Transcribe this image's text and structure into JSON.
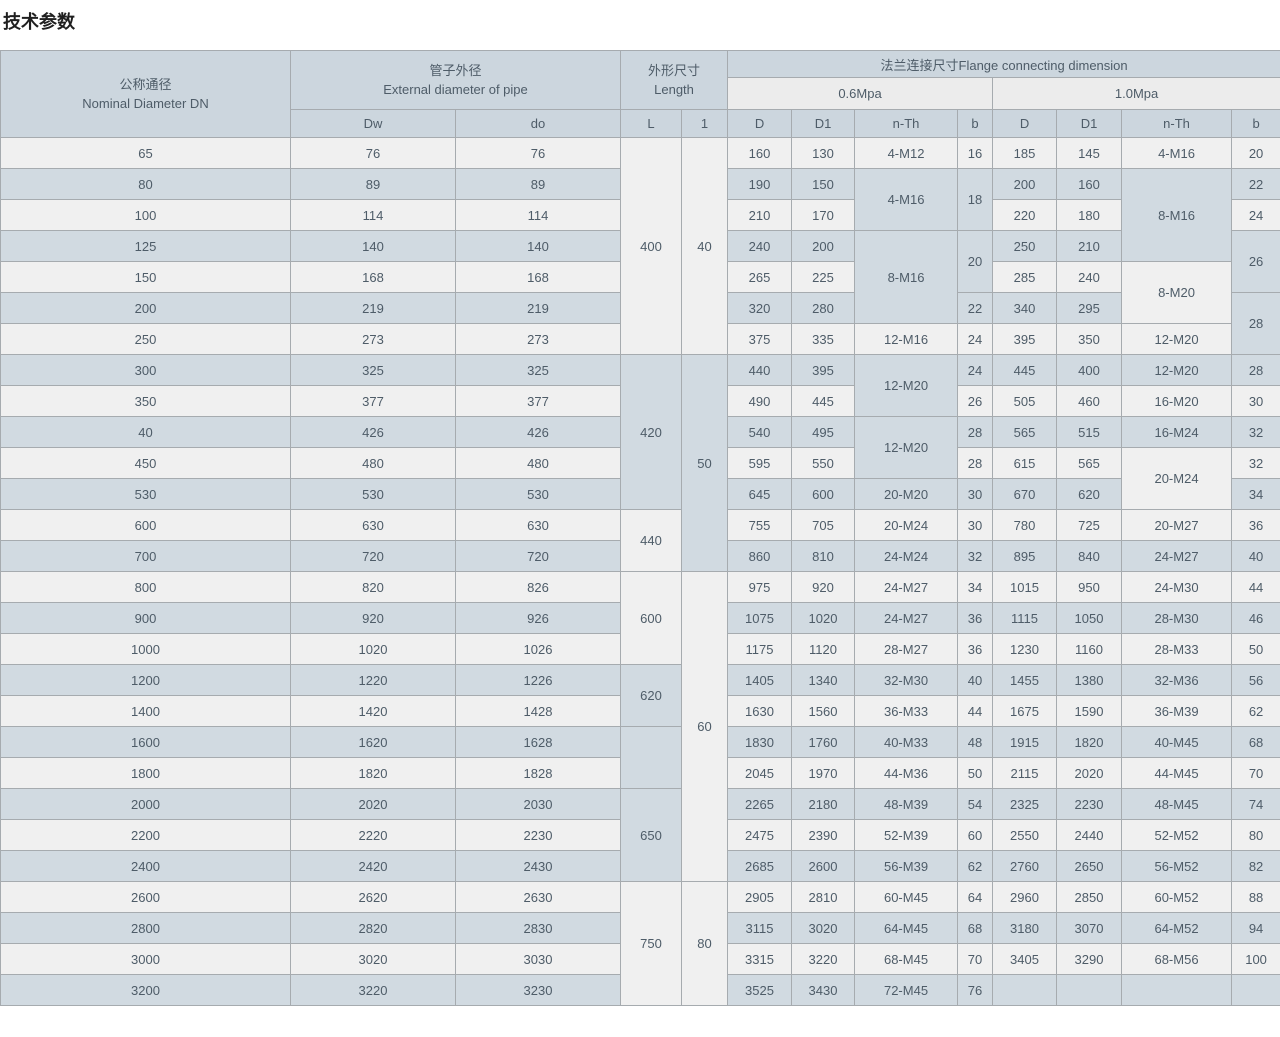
{
  "page": {
    "title": "技术参数"
  },
  "table": {
    "header": {
      "dn": {
        "cn": "公称通径",
        "en": "Nominal Diameter DN"
      },
      "pipe": {
        "cn": "管子外径",
        "en": "External diameter of pipe"
      },
      "length": {
        "cn": "外形尺寸",
        "en": "Length"
      },
      "flange": "法兰连接尺寸Flange connecting dimension",
      "pressure_groups": [
        "0.6Mpa",
        "1.0Mpa"
      ],
      "sub_columns": [
        "Dw",
        "do",
        "L",
        "1",
        "D",
        "D1",
        "n-Th",
        "b",
        "D",
        "D1",
        "n-Th",
        "b"
      ]
    },
    "colors": {
      "header_bg": "#ccd6de",
      "pressure_row_bg": "#ececec",
      "row_light": "#f0f0f0",
      "row_shaded": "#d1dae1",
      "border": "#a6abaf",
      "border_outer": "#8d979e",
      "cell_text": "#4e5c68",
      "title_text": "#1f1f1f"
    },
    "rows": [
      [
        "65",
        "76",
        "76",
        [
          "400",
          7
        ],
        [
          "40",
          7
        ],
        "160",
        "130",
        "4-M12",
        "16",
        "185",
        "145",
        "4-M16",
        "20"
      ],
      [
        "80",
        "89",
        "89",
        "190",
        "150",
        [
          "4-M16",
          2
        ],
        [
          "18",
          2
        ],
        "200",
        "160",
        [
          "8-M16",
          3
        ],
        "22"
      ],
      [
        "100",
        "114",
        "114",
        "210",
        "170",
        "220",
        "180",
        "24"
      ],
      [
        "125",
        "140",
        "140",
        "240",
        "200",
        [
          "8-M16",
          3
        ],
        [
          "20",
          2
        ],
        "250",
        "210",
        [
          "26",
          2
        ]
      ],
      [
        "150",
        "168",
        "168",
        "265",
        "225",
        "285",
        "240",
        [
          "8-M20",
          2
        ]
      ],
      [
        "200",
        "219",
        "219",
        "320",
        "280",
        "22",
        "340",
        "295",
        [
          "28",
          2
        ]
      ],
      [
        "250",
        "273",
        "273",
        "375",
        "335",
        "12-M16",
        "24",
        "395",
        "350",
        "12-M20"
      ],
      [
        "300",
        "325",
        "325",
        [
          "420",
          5
        ],
        [
          "50",
          7
        ],
        "440",
        "395",
        [
          "12-M20",
          2
        ],
        "24",
        "445",
        "400",
        "12-M20",
        "28"
      ],
      [
        "350",
        "377",
        "377",
        "490",
        "445",
        "26",
        "505",
        "460",
        "16-M20",
        "30"
      ],
      [
        "40",
        "426",
        "426",
        "540",
        "495",
        [
          "12-M20",
          2
        ],
        "28",
        "565",
        "515",
        "16-M24",
        "32"
      ],
      [
        "450",
        "480",
        "480",
        "595",
        "550",
        "28",
        "615",
        "565",
        [
          "20-M24",
          2
        ],
        "32"
      ],
      [
        "530",
        "530",
        "530",
        "645",
        "600",
        "20-M20",
        "30",
        "670",
        "620",
        "34"
      ],
      [
        "600",
        "630",
        "630",
        [
          "440",
          2
        ],
        "755",
        "705",
        "20-M24",
        "30",
        "780",
        "725",
        "20-M27",
        "36"
      ],
      [
        "700",
        "720",
        "720",
        "860",
        "810",
        "24-M24",
        "32",
        "895",
        "840",
        "24-M27",
        "40"
      ],
      [
        "800",
        "820",
        "826",
        [
          "600",
          3
        ],
        [
          "60",
          10
        ],
        "975",
        "920",
        "24-M27",
        "34",
        "1015",
        "950",
        "24-M30",
        "44"
      ],
      [
        "900",
        "920",
        "926",
        "1075",
        "1020",
        "24-M27",
        "36",
        "1115",
        "1050",
        "28-M30",
        "46"
      ],
      [
        "1000",
        "1020",
        "1026",
        "1175",
        "1120",
        "28-M27",
        "36",
        "1230",
        "1160",
        "28-M33",
        "50"
      ],
      [
        "1200",
        "1220",
        "1226",
        [
          "620",
          2
        ],
        "1405",
        "1340",
        "32-M30",
        "40",
        "1455",
        "1380",
        "32-M36",
        "56"
      ],
      [
        "1400",
        "1420",
        "1428",
        "1630",
        "1560",
        "36-M33",
        "44",
        "1675",
        "1590",
        "36-M39",
        "62"
      ],
      [
        "1600",
        "1620",
        "1628",
        [
          "",
          2
        ],
        "1830",
        "1760",
        "40-M33",
        "48",
        "1915",
        "1820",
        "40-M45",
        "68"
      ],
      [
        "1800",
        "1820",
        "1828",
        "2045",
        "1970",
        "44-M36",
        "50",
        "2115",
        "2020",
        "44-M45",
        "70"
      ],
      [
        "2000",
        "2020",
        "2030",
        [
          "650",
          3
        ],
        "2265",
        "2180",
        "48-M39",
        "54",
        "2325",
        "2230",
        "48-M45",
        "74"
      ],
      [
        "2200",
        "2220",
        "2230",
        "2475",
        "2390",
        "52-M39",
        "60",
        "2550",
        "2440",
        "52-M52",
        "80"
      ],
      [
        "2400",
        "2420",
        "2430",
        "2685",
        "2600",
        "56-M39",
        "62",
        "2760",
        "2650",
        "56-M52",
        "82"
      ],
      [
        "2600",
        "2620",
        "2630",
        [
          "750",
          4
        ],
        [
          "80",
          4
        ],
        "2905",
        "2810",
        "60-M45",
        "64",
        "2960",
        "2850",
        "60-M52",
        "88"
      ],
      [
        "2800",
        "2820",
        "2830",
        "3115",
        "3020",
        "64-M45",
        "68",
        "3180",
        "3070",
        "64-M52",
        "94"
      ],
      [
        "3000",
        "3020",
        "3030",
        "3315",
        "3220",
        "68-M45",
        "70",
        "3405",
        "3290",
        "68-M56",
        "100"
      ],
      [
        "3200",
        "3220",
        "3230",
        "3525",
        "3430",
        "72-M45",
        "76",
        "",
        "",
        "",
        ""
      ]
    ]
  }
}
